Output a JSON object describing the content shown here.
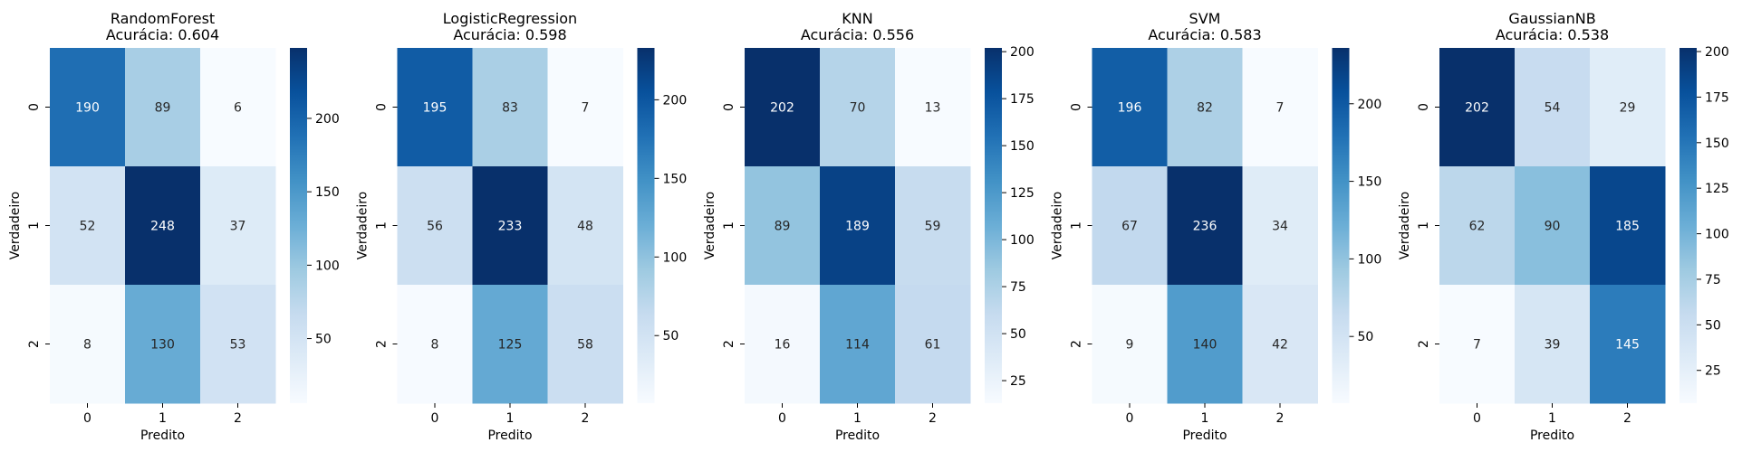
{
  "chart_data": [
    {
      "type": "heatmap",
      "title": "RandomForest\nAcurácia: 0.604",
      "xlabel": "Predito",
      "ylabel": "Verdadeiro",
      "x_tick_labels": [
        "0",
        "1",
        "2"
      ],
      "y_tick_labels": [
        "0",
        "1",
        "2"
      ],
      "values": [
        [
          190,
          89,
          6
        ],
        [
          52,
          248,
          37
        ],
        [
          8,
          130,
          53
        ]
      ],
      "colorbar_range": [
        6,
        248
      ],
      "colorbar_ticks": [
        50,
        100,
        150,
        200
      ],
      "colormap": "Blues"
    },
    {
      "type": "heatmap",
      "title": "LogisticRegression\nAcurácia: 0.598",
      "xlabel": "Predito",
      "ylabel": "Verdadeiro",
      "x_tick_labels": [
        "0",
        "1",
        "2"
      ],
      "y_tick_labels": [
        "0",
        "1",
        "2"
      ],
      "values": [
        [
          195,
          83,
          7
        ],
        [
          56,
          233,
          48
        ],
        [
          8,
          125,
          58
        ]
      ],
      "colorbar_range": [
        7,
        233
      ],
      "colorbar_ticks": [
        50,
        100,
        150,
        200
      ],
      "colormap": "Blues"
    },
    {
      "type": "heatmap",
      "title": "KNN\nAcurácia: 0.556",
      "xlabel": "Predito",
      "ylabel": "Verdadeiro",
      "x_tick_labels": [
        "0",
        "1",
        "2"
      ],
      "y_tick_labels": [
        "0",
        "1",
        "2"
      ],
      "values": [
        [
          202,
          70,
          13
        ],
        [
          89,
          189,
          59
        ],
        [
          16,
          114,
          61
        ]
      ],
      "colorbar_range": [
        13,
        202
      ],
      "colorbar_ticks": [
        25,
        50,
        75,
        100,
        125,
        150,
        175,
        200
      ],
      "colormap": "Blues"
    },
    {
      "type": "heatmap",
      "title": "SVM\nAcurácia: 0.583",
      "xlabel": "Predito",
      "ylabel": "Verdadeiro",
      "x_tick_labels": [
        "0",
        "1",
        "2"
      ],
      "y_tick_labels": [
        "0",
        "1",
        "2"
      ],
      "values": [
        [
          196,
          82,
          7
        ],
        [
          67,
          236,
          34
        ],
        [
          9,
          140,
          42
        ]
      ],
      "colorbar_range": [
        7,
        236
      ],
      "colorbar_ticks": [
        50,
        100,
        150,
        200
      ],
      "colormap": "Blues"
    },
    {
      "type": "heatmap",
      "title": "GaussianNB\nAcurácia: 0.538",
      "xlabel": "Predito",
      "ylabel": "Verdadeiro",
      "x_tick_labels": [
        "0",
        "1",
        "2"
      ],
      "y_tick_labels": [
        "0",
        "1",
        "2"
      ],
      "values": [
        [
          202,
          54,
          29
        ],
        [
          62,
          90,
          185
        ],
        [
          7,
          39,
          145
        ]
      ],
      "colorbar_range": [
        7,
        202
      ],
      "colorbar_ticks": [
        25,
        50,
        75,
        100,
        125,
        150,
        175,
        200
      ],
      "colormap": "Blues"
    }
  ]
}
